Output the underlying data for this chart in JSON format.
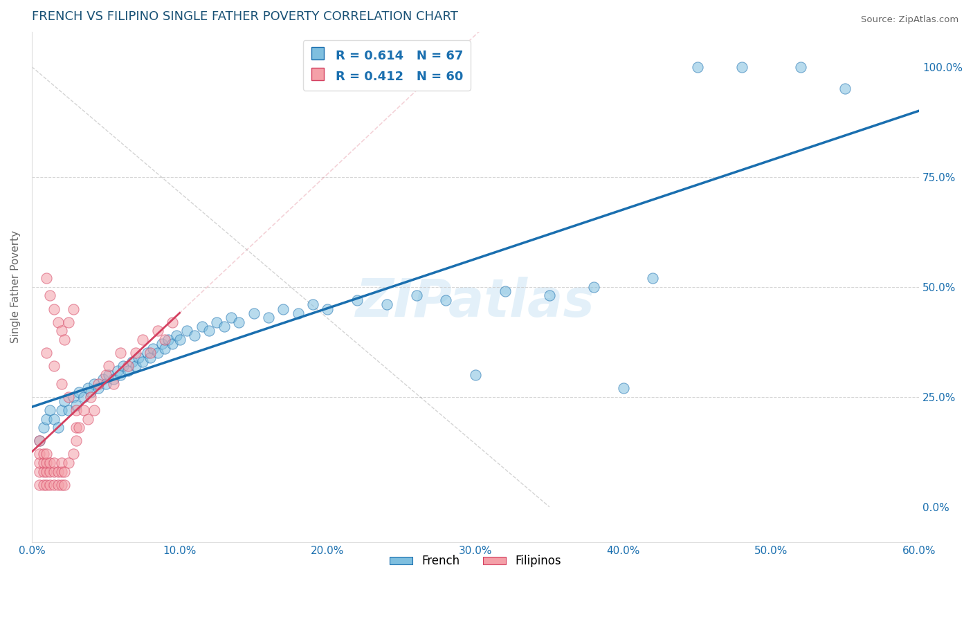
{
  "title": "FRENCH VS FILIPINO SINGLE FATHER POVERTY CORRELATION CHART",
  "source": "Source: ZipAtlas.com",
  "xlabel_ticks": [
    "0.0%",
    "",
    "10.0%",
    "",
    "20.0%",
    "",
    "30.0%",
    "",
    "40.0%",
    "",
    "50.0%",
    "",
    "60.0%"
  ],
  "ylabel_ticks_labels": [
    "0.0%",
    "25.0%",
    "50.0%",
    "75.0%",
    "100.0%"
  ],
  "xmin": 0.0,
  "xmax": 0.6,
  "ymin": -0.08,
  "ymax": 1.08,
  "french_R": 0.614,
  "french_N": 67,
  "filipino_R": 0.412,
  "filipino_N": 60,
  "french_color": "#7fbfdf",
  "filipino_color": "#f4a0a8",
  "french_line_color": "#1a6faf",
  "filipino_line_color": "#d44060",
  "title_color": "#1a5276",
  "axis_label_color": "#1a6faf",
  "legend_text_color": "#1a6faf",
  "watermark": "ZIPatlas",
  "french_points": [
    [
      0.005,
      0.15
    ],
    [
      0.008,
      0.18
    ],
    [
      0.01,
      0.2
    ],
    [
      0.012,
      0.22
    ],
    [
      0.015,
      0.2
    ],
    [
      0.018,
      0.18
    ],
    [
      0.02,
      0.22
    ],
    [
      0.022,
      0.24
    ],
    [
      0.025,
      0.22
    ],
    [
      0.028,
      0.25
    ],
    [
      0.03,
      0.23
    ],
    [
      0.032,
      0.26
    ],
    [
      0.035,
      0.25
    ],
    [
      0.038,
      0.27
    ],
    [
      0.04,
      0.26
    ],
    [
      0.042,
      0.28
    ],
    [
      0.045,
      0.27
    ],
    [
      0.048,
      0.29
    ],
    [
      0.05,
      0.28
    ],
    [
      0.052,
      0.3
    ],
    [
      0.055,
      0.29
    ],
    [
      0.058,
      0.31
    ],
    [
      0.06,
      0.3
    ],
    [
      0.062,
      0.32
    ],
    [
      0.065,
      0.31
    ],
    [
      0.068,
      0.33
    ],
    [
      0.07,
      0.32
    ],
    [
      0.072,
      0.34
    ],
    [
      0.075,
      0.33
    ],
    [
      0.078,
      0.35
    ],
    [
      0.08,
      0.34
    ],
    [
      0.082,
      0.36
    ],
    [
      0.085,
      0.35
    ],
    [
      0.088,
      0.37
    ],
    [
      0.09,
      0.36
    ],
    [
      0.092,
      0.38
    ],
    [
      0.095,
      0.37
    ],
    [
      0.098,
      0.39
    ],
    [
      0.1,
      0.38
    ],
    [
      0.105,
      0.4
    ],
    [
      0.11,
      0.39
    ],
    [
      0.115,
      0.41
    ],
    [
      0.12,
      0.4
    ],
    [
      0.125,
      0.42
    ],
    [
      0.13,
      0.41
    ],
    [
      0.135,
      0.43
    ],
    [
      0.14,
      0.42
    ],
    [
      0.15,
      0.44
    ],
    [
      0.16,
      0.43
    ],
    [
      0.17,
      0.45
    ],
    [
      0.18,
      0.44
    ],
    [
      0.19,
      0.46
    ],
    [
      0.2,
      0.45
    ],
    [
      0.22,
      0.47
    ],
    [
      0.24,
      0.46
    ],
    [
      0.26,
      0.48
    ],
    [
      0.28,
      0.47
    ],
    [
      0.3,
      0.3
    ],
    [
      0.32,
      0.49
    ],
    [
      0.35,
      0.48
    ],
    [
      0.38,
      0.5
    ],
    [
      0.4,
      0.27
    ],
    [
      0.42,
      0.52
    ],
    [
      0.45,
      1.0
    ],
    [
      0.48,
      1.0
    ],
    [
      0.52,
      1.0
    ],
    [
      0.55,
      0.95
    ]
  ],
  "filipino_points": [
    [
      0.005,
      0.05
    ],
    [
      0.005,
      0.08
    ],
    [
      0.005,
      0.1
    ],
    [
      0.005,
      0.12
    ],
    [
      0.005,
      0.15
    ],
    [
      0.008,
      0.05
    ],
    [
      0.008,
      0.08
    ],
    [
      0.008,
      0.1
    ],
    [
      0.008,
      0.12
    ],
    [
      0.01,
      0.05
    ],
    [
      0.01,
      0.08
    ],
    [
      0.01,
      0.1
    ],
    [
      0.01,
      0.12
    ],
    [
      0.012,
      0.05
    ],
    [
      0.012,
      0.08
    ],
    [
      0.012,
      0.1
    ],
    [
      0.015,
      0.05
    ],
    [
      0.015,
      0.08
    ],
    [
      0.015,
      0.1
    ],
    [
      0.018,
      0.05
    ],
    [
      0.018,
      0.08
    ],
    [
      0.02,
      0.05
    ],
    [
      0.02,
      0.08
    ],
    [
      0.02,
      0.1
    ],
    [
      0.022,
      0.05
    ],
    [
      0.022,
      0.08
    ],
    [
      0.025,
      0.1
    ],
    [
      0.028,
      0.12
    ],
    [
      0.03,
      0.15
    ],
    [
      0.03,
      0.18
    ],
    [
      0.03,
      0.22
    ],
    [
      0.032,
      0.18
    ],
    [
      0.035,
      0.22
    ],
    [
      0.038,
      0.2
    ],
    [
      0.04,
      0.25
    ],
    [
      0.042,
      0.22
    ],
    [
      0.045,
      0.28
    ],
    [
      0.05,
      0.3
    ],
    [
      0.052,
      0.32
    ],
    [
      0.055,
      0.28
    ],
    [
      0.06,
      0.35
    ],
    [
      0.065,
      0.32
    ],
    [
      0.07,
      0.35
    ],
    [
      0.075,
      0.38
    ],
    [
      0.08,
      0.35
    ],
    [
      0.085,
      0.4
    ],
    [
      0.09,
      0.38
    ],
    [
      0.095,
      0.42
    ],
    [
      0.01,
      0.52
    ],
    [
      0.012,
      0.48
    ],
    [
      0.015,
      0.45
    ],
    [
      0.018,
      0.42
    ],
    [
      0.02,
      0.4
    ],
    [
      0.022,
      0.38
    ],
    [
      0.025,
      0.42
    ],
    [
      0.028,
      0.45
    ],
    [
      0.01,
      0.35
    ],
    [
      0.015,
      0.32
    ],
    [
      0.02,
      0.28
    ],
    [
      0.025,
      0.25
    ]
  ]
}
